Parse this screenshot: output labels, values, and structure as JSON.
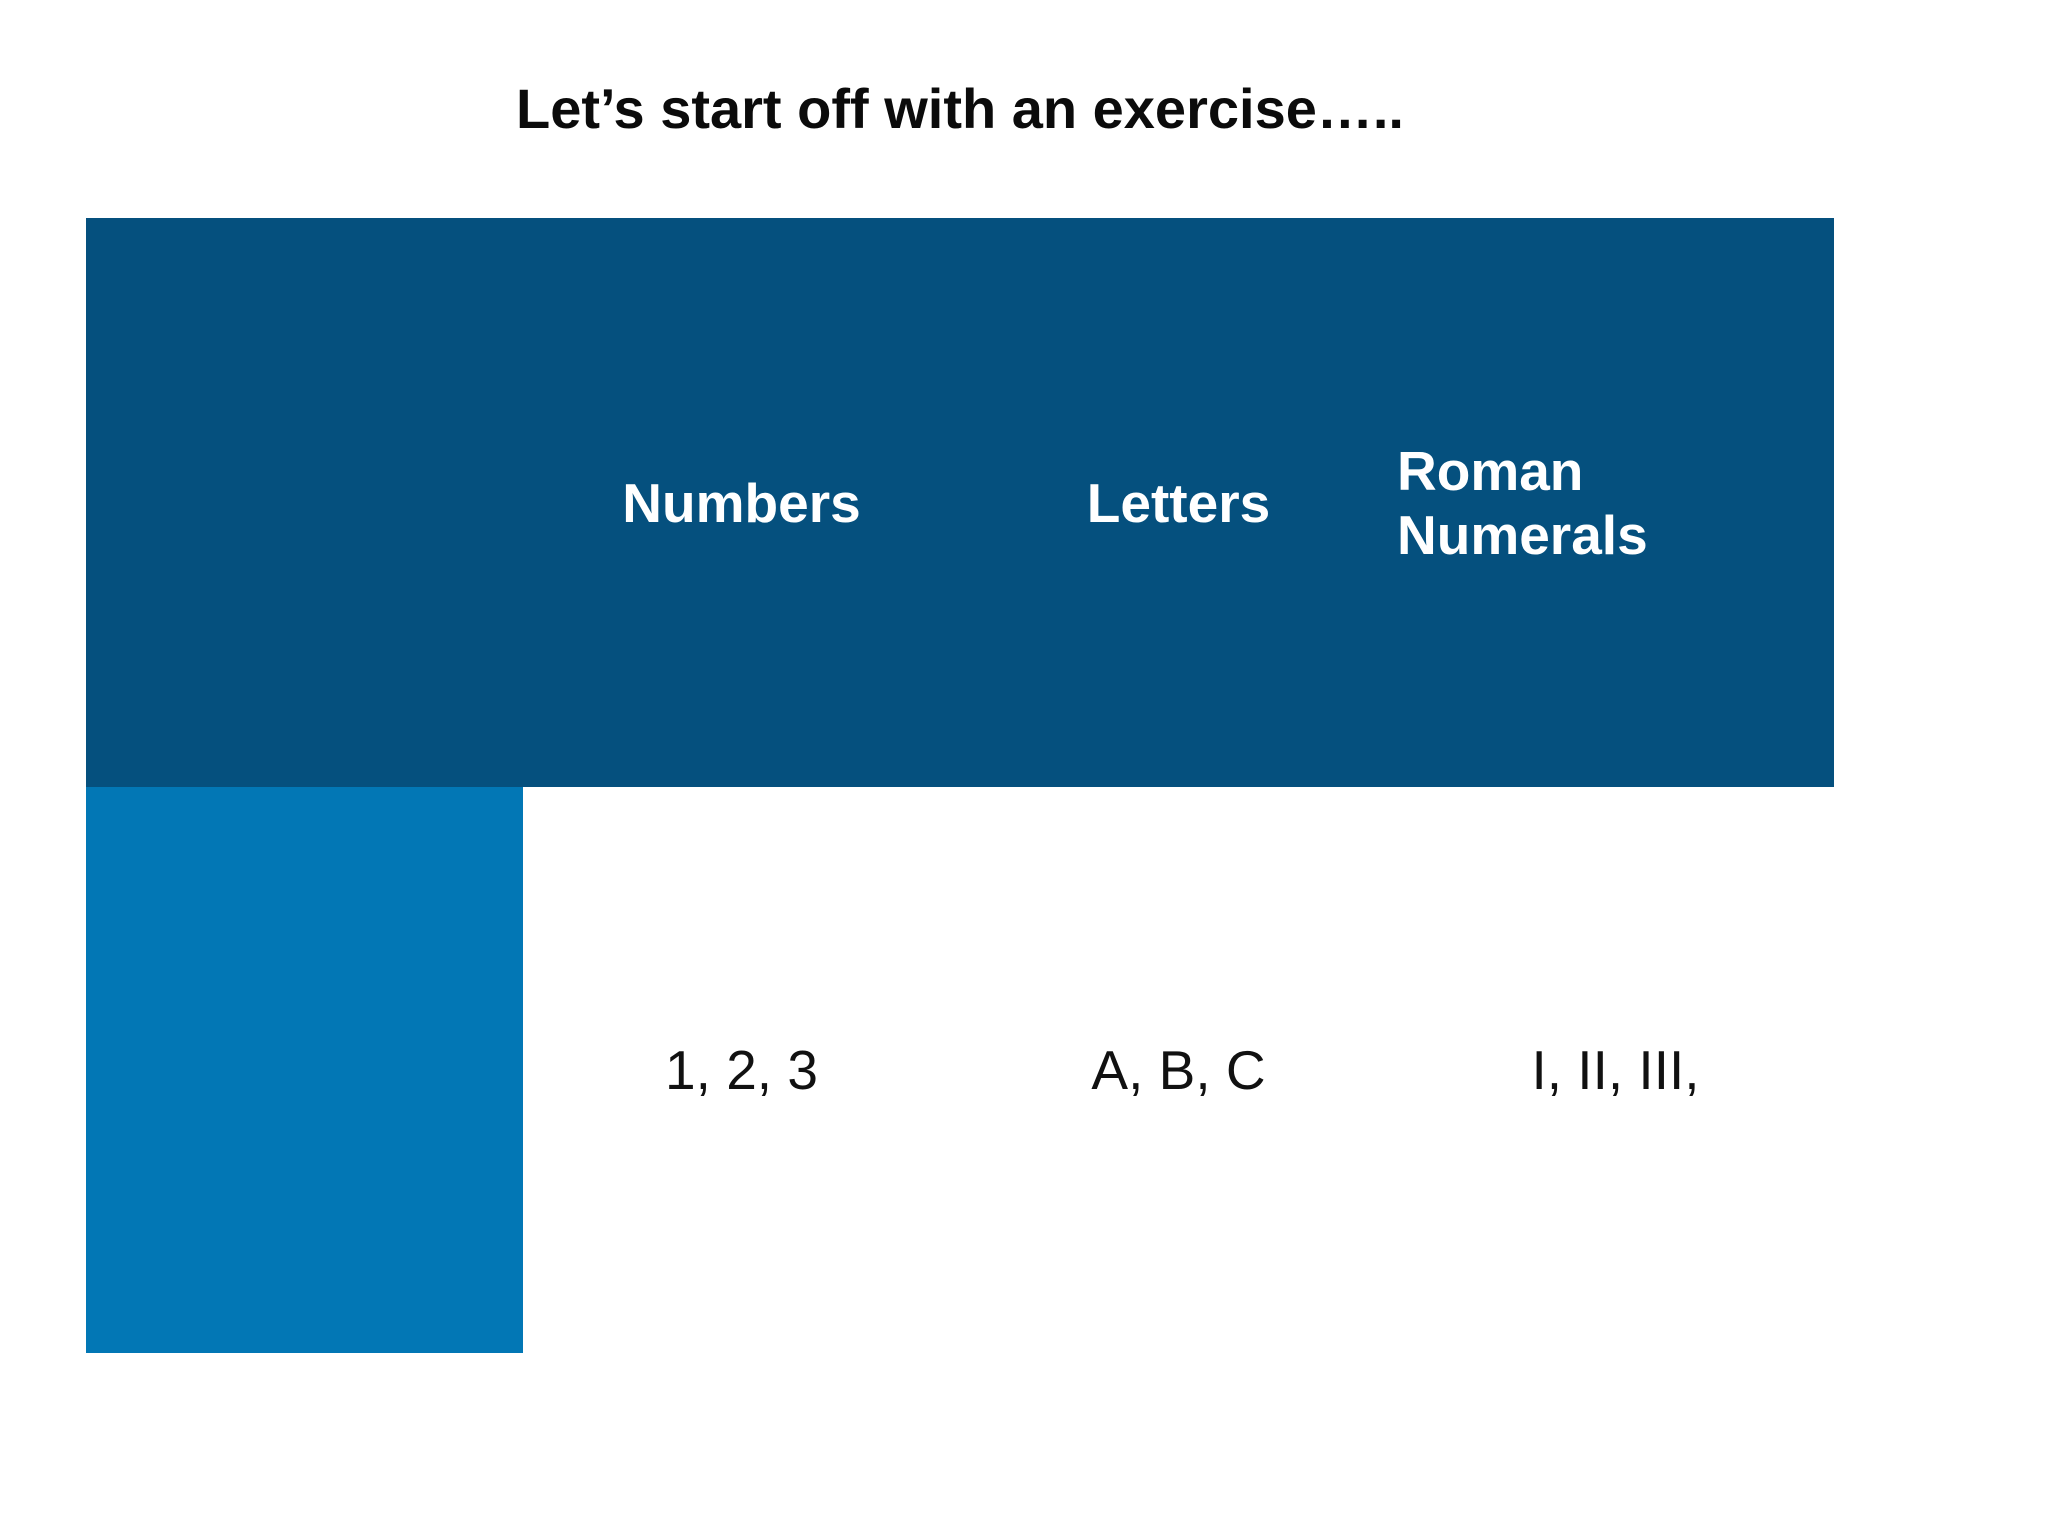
{
  "title": "Let’s start off with an exercise…..",
  "colors": {
    "background": "#FFFFFF",
    "header_bg": "#05507E",
    "row_label_bg": "#0277B5",
    "header_text": "#FFFFFF",
    "body_text": "#111111",
    "title_text": "#0B0B0B"
  },
  "table": {
    "columns": [
      {
        "header": "",
        "cell": ""
      },
      {
        "header": "Numbers",
        "cell": "1, 2, 3"
      },
      {
        "header": "Letters",
        "cell": "A, B, C"
      },
      {
        "header": "Roman Numerals",
        "cell": "I, II, III,"
      }
    ]
  }
}
